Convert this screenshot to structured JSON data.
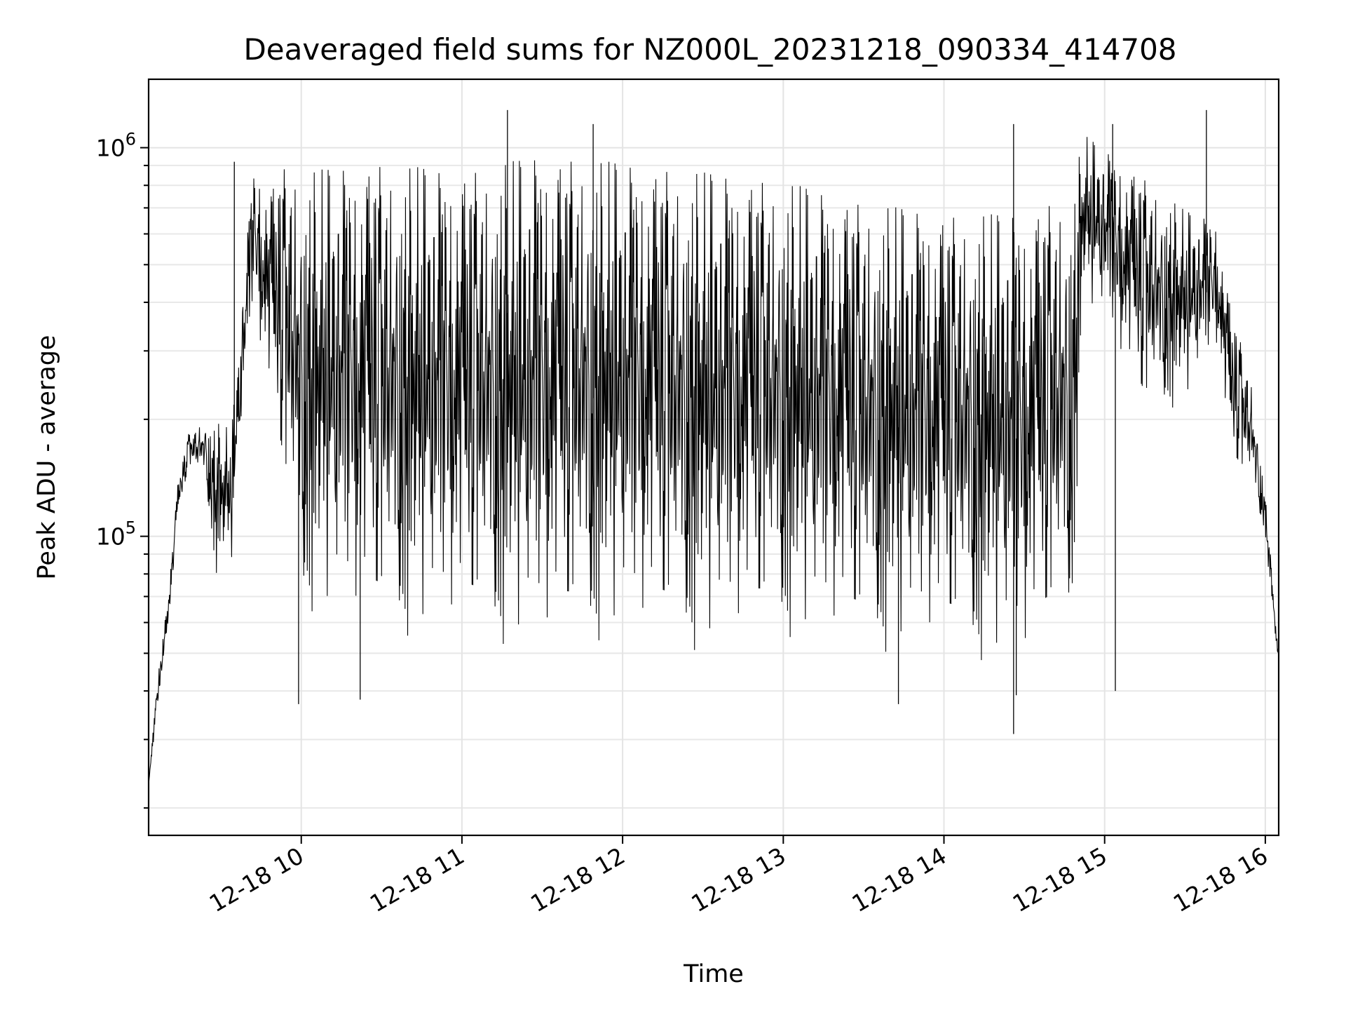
{
  "chart_data": {
    "type": "line",
    "title": "Deaveraged field sums for NZ000L_20231218_090334_414708",
    "xlabel": "Time",
    "ylabel": "Peak ADU - average",
    "yscale": "log",
    "grid": true,
    "xlim": [
      "2023-12-18 09:03",
      "2023-12-18 16:05"
    ],
    "ylim": [
      17000,
      1500000
    ],
    "x_ticks": [
      {
        "value": "2023-12-18 10:00",
        "label": "12-18 10"
      },
      {
        "value": "2023-12-18 11:00",
        "label": "12-18 11"
      },
      {
        "value": "2023-12-18 12:00",
        "label": "12-18 12"
      },
      {
        "value": "2023-12-18 13:00",
        "label": "12-18 13"
      },
      {
        "value": "2023-12-18 14:00",
        "label": "12-18 14"
      },
      {
        "value": "2023-12-18 15:00",
        "label": "12-18 15"
      },
      {
        "value": "2023-12-18 16:00",
        "label": "12-18 16"
      }
    ],
    "y_ticks": [
      {
        "value": 100000,
        "base": "10",
        "exp": "5"
      },
      {
        "value": 1000000,
        "base": "10",
        "exp": "6"
      }
    ],
    "series": [
      {
        "color": "#000000",
        "envelope": [
          {
            "x": "2023-12-18 09:03",
            "low": 23000,
            "high": 23000
          },
          {
            "x": "2023-12-18 09:06",
            "low": 35000,
            "high": 42000
          },
          {
            "x": "2023-12-18 09:10",
            "low": 55000,
            "high": 68000
          },
          {
            "x": "2023-12-18 09:14",
            "low": 110000,
            "high": 140000
          },
          {
            "x": "2023-12-18 09:18",
            "low": 150000,
            "high": 185000
          },
          {
            "x": "2023-12-18 09:24",
            "low": 140000,
            "high": 200000
          },
          {
            "x": "2023-12-18 09:28",
            "low": 80000,
            "high": 200000
          },
          {
            "x": "2023-12-18 09:34",
            "low": 85000,
            "high": 190000
          },
          {
            "x": "2023-12-18 09:38",
            "low": 200000,
            "high": 420000
          },
          {
            "x": "2023-12-18 09:42",
            "low": 380000,
            "high": 900000
          },
          {
            "x": "2023-12-18 09:48",
            "low": 220000,
            "high": 800000
          },
          {
            "x": "2023-12-18 09:55",
            "low": 110000,
            "high": 950000
          },
          {
            "x": "2023-12-18 10:00",
            "low": 65000,
            "high": 900000
          },
          {
            "x": "2023-12-18 10:30",
            "low": 55000,
            "high": 950000
          },
          {
            "x": "2023-12-18 11:00",
            "low": 55000,
            "high": 900000
          },
          {
            "x": "2023-12-18 11:30",
            "low": 50000,
            "high": 1000000
          },
          {
            "x": "2023-12-18 12:00",
            "low": 55000,
            "high": 950000
          },
          {
            "x": "2023-12-18 12:30",
            "low": 50000,
            "high": 900000
          },
          {
            "x": "2023-12-18 13:00",
            "low": 55000,
            "high": 850000
          },
          {
            "x": "2023-12-18 13:30",
            "low": 50000,
            "high": 750000
          },
          {
            "x": "2023-12-18 14:00",
            "low": 50000,
            "high": 700000
          },
          {
            "x": "2023-12-18 14:30",
            "low": 45000,
            "high": 700000
          },
          {
            "x": "2023-12-18 14:48",
            "low": 60000,
            "high": 800000
          },
          {
            "x": "2023-12-18 14:52",
            "low": 400000,
            "high": 1100000
          },
          {
            "x": "2023-12-18 15:00",
            "low": 350000,
            "high": 1000000
          },
          {
            "x": "2023-12-18 15:15",
            "low": 200000,
            "high": 850000
          },
          {
            "x": "2023-12-18 15:30",
            "low": 220000,
            "high": 700000
          },
          {
            "x": "2023-12-18 15:42",
            "low": 300000,
            "high": 650000
          },
          {
            "x": "2023-12-18 15:47",
            "low": 150000,
            "high": 400000
          },
          {
            "x": "2023-12-18 15:55",
            "low": 130000,
            "high": 250000
          },
          {
            "x": "2023-12-18 16:00",
            "low": 100000,
            "high": 130000
          },
          {
            "x": "2023-12-18 16:05",
            "low": 44000,
            "high": 50000
          }
        ],
        "notable_points": [
          {
            "x": "2023-12-18 09:35",
            "y": 920000
          },
          {
            "x": "2023-12-18 09:59",
            "y": 37000
          },
          {
            "x": "2023-12-18 10:22",
            "y": 38000
          },
          {
            "x": "2023-12-18 11:17",
            "y": 1250000
          },
          {
            "x": "2023-12-18 11:49",
            "y": 1150000
          },
          {
            "x": "2023-12-18 13:43",
            "y": 37000
          },
          {
            "x": "2023-12-18 14:26",
            "y": 1150000
          },
          {
            "x": "2023-12-18 14:27",
            "y": 39000
          },
          {
            "x": "2023-12-18 14:26",
            "y": 31000
          },
          {
            "x": "2023-12-18 15:03",
            "y": 1150000
          },
          {
            "x": "2023-12-18 15:04",
            "y": 40000
          },
          {
            "x": "2023-12-18 15:38",
            "y": 1250000
          }
        ]
      }
    ]
  }
}
